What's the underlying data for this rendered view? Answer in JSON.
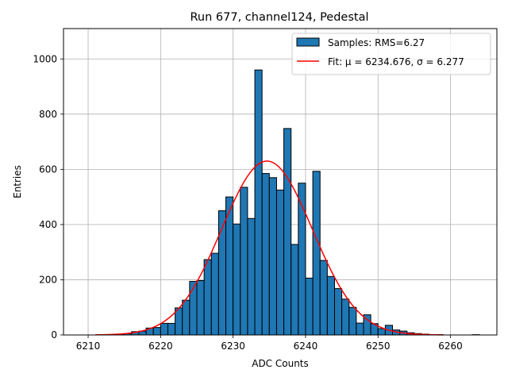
{
  "chart_data": {
    "type": "bar",
    "title": "Run 677, channel124, Pedestal",
    "xlabel": "ADC Counts",
    "ylabel": "Entries",
    "xlim": [
      6206.6,
      6266.4
    ],
    "ylim": [
      0,
      1110
    ],
    "x_ticks": [
      6210,
      6220,
      6230,
      6240,
      6250,
      6260
    ],
    "y_ticks": [
      0,
      200,
      400,
      600,
      800,
      1000
    ],
    "grid": true,
    "legend_position": "top-right",
    "bin_width": 1,
    "series": [
      {
        "name": "Samples: RMS=6.27",
        "type": "histogram",
        "color": "#1f77b4",
        "bins_left": [
          6211,
          6212,
          6213,
          6214,
          6215,
          6216,
          6217,
          6218,
          6219,
          6220,
          6221,
          6222,
          6223,
          6224,
          6225,
          6226,
          6227,
          6228,
          6229,
          6230,
          6231,
          6232,
          6233,
          6234,
          6235,
          6236,
          6237,
          6238,
          6239,
          6240,
          6241,
          6242,
          6243,
          6244,
          6245,
          6246,
          6247,
          6248,
          6249,
          6250,
          6251,
          6252,
          6253,
          6254,
          6255,
          6256,
          6257,
          6258,
          6259,
          6260,
          6261,
          6262,
          6263
        ],
        "values": [
          0,
          1,
          1,
          3,
          5,
          12,
          14,
          25,
          27,
          42,
          42,
          98,
          126,
          194,
          197,
          273,
          296,
          450,
          500,
          402,
          535,
          422,
          960,
          585,
          570,
          525,
          748,
          328,
          550,
          206,
          593,
          270,
          212,
          168,
          130,
          100,
          43,
          73,
          41,
          23,
          35,
          18,
          14,
          8,
          5,
          3,
          1,
          1,
          0,
          0,
          0,
          0,
          1
        ]
      },
      {
        "name": "Fit: μ = 6234.676, σ = 6.277",
        "type": "line",
        "color": "#ff0000",
        "mu": 6234.676,
        "sigma": 6.277,
        "amplitude": 630,
        "x_range": [
          6211,
          6259
        ]
      }
    ]
  }
}
